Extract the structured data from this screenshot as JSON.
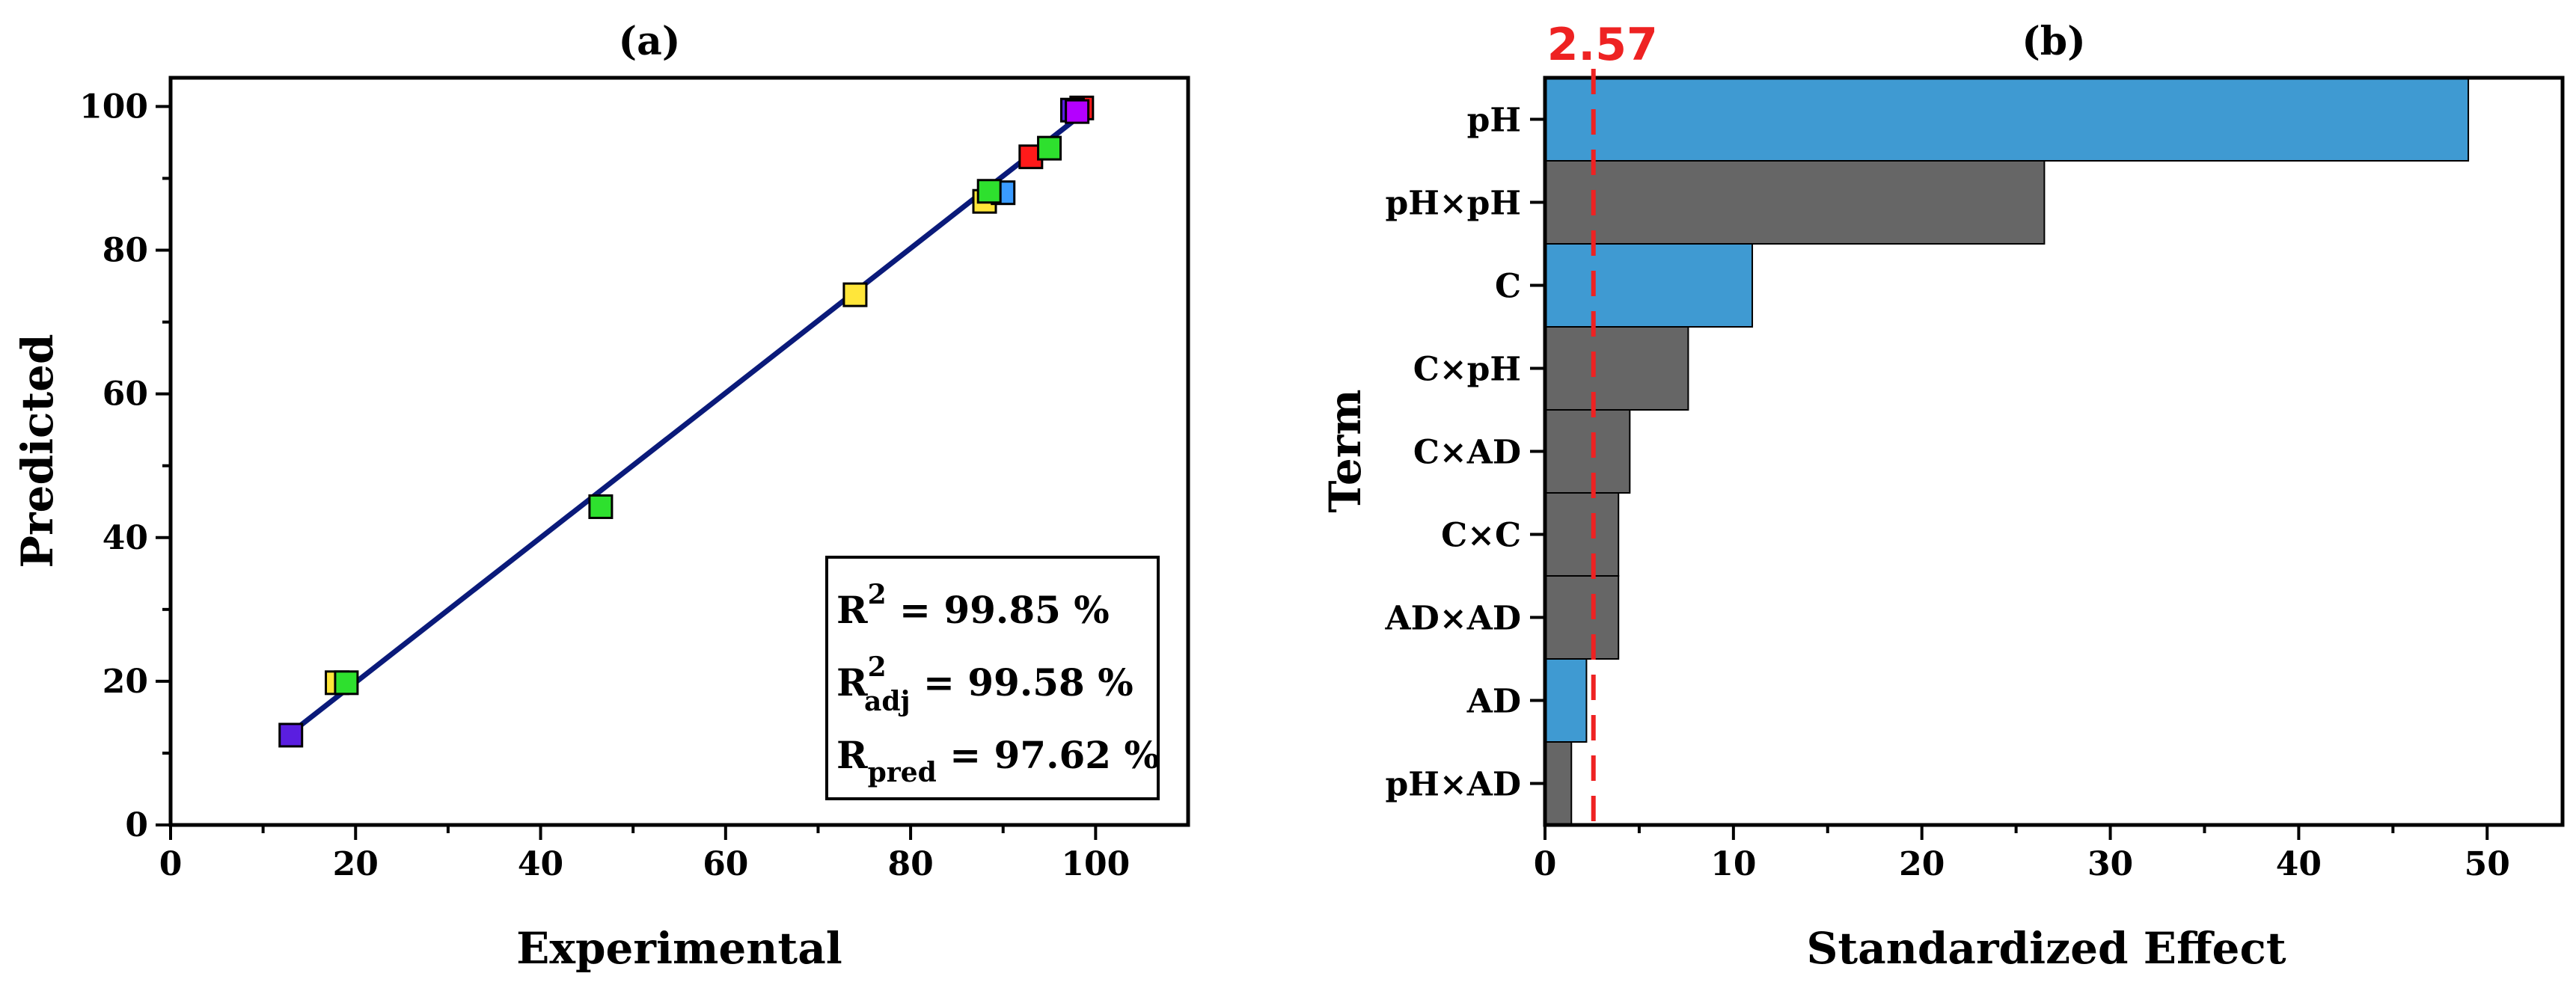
{
  "chart_data": [
    {
      "id": "a",
      "type": "scatter",
      "title": "(a)",
      "xlabel": "Experimental",
      "ylabel": "Predicted",
      "xlim": [
        0,
        110
      ],
      "ylim": [
        0,
        104
      ],
      "xticks": [
        0,
        20,
        40,
        60,
        80,
        100
      ],
      "yticks": [
        0,
        20,
        40,
        60,
        80,
        100
      ],
      "fit_line": {
        "x": [
          13,
          99
        ],
        "y": [
          12.8,
          99.4
        ],
        "color": "#0a1a7a"
      },
      "points": [
        {
          "x": 13.0,
          "y": 12.5,
          "color": "#5a1ee0"
        },
        {
          "x": 18.0,
          "y": 19.8,
          "color": "#ffe63a"
        },
        {
          "x": 19.0,
          "y": 19.8,
          "color": "#2ee02e"
        },
        {
          "x": 46.5,
          "y": 44.3,
          "color": "#2ee02e"
        },
        {
          "x": 74.0,
          "y": 73.8,
          "color": "#ffe63a"
        },
        {
          "x": 88.0,
          "y": 86.8,
          "color": "#ffe63a"
        },
        {
          "x": 90.0,
          "y": 88.0,
          "color": "#3a9bff"
        },
        {
          "x": 88.5,
          "y": 88.2,
          "color": "#2ee02e"
        },
        {
          "x": 93.0,
          "y": 93.0,
          "color": "#ff1a1a"
        },
        {
          "x": 95.0,
          "y": 94.2,
          "color": "#2ee02e"
        },
        {
          "x": 98.5,
          "y": 99.8,
          "color": "#ff1a1a"
        },
        {
          "x": 97.5,
          "y": 99.5,
          "color": "#5a1ee0"
        },
        {
          "x": 98.0,
          "y": 99.3,
          "color": "#b400ff"
        }
      ],
      "stats": {
        "r2_base": "R",
        "r2_sup": "2",
        "r2_text": " =  99.85 %",
        "radj_base": "R",
        "radj_sup": "2",
        "radj_sub": "adj",
        "radj_text": " = 99.58 %",
        "rpred_base": "R",
        "rpred_sub": "pred",
        "rpred_text": " = 97.62 %"
      }
    },
    {
      "id": "b",
      "type": "bar",
      "orientation": "horizontal",
      "title": "(b)",
      "xlabel": "Standardized Effect",
      "ylabel": "Term",
      "xlim": [
        0,
        54
      ],
      "xticks": [
        0,
        10,
        20,
        30,
        40,
        50
      ],
      "categories": [
        "pH",
        "pH×pH",
        "C",
        "C×pH",
        "C×AD",
        "C×C",
        "AD×AD",
        "AD",
        "pH×AD"
      ],
      "values": [
        49.0,
        26.5,
        11.0,
        7.6,
        4.5,
        3.9,
        3.9,
        2.2,
        1.4
      ],
      "bar_colors": [
        "#3f9ad2",
        "#666666",
        "#3f9ad2",
        "#666666",
        "#666666",
        "#666666",
        "#666666",
        "#3f9ad2",
        "#666666"
      ],
      "reference_line": {
        "value": 2.57,
        "label": "2.57",
        "color": "#ee2222"
      }
    }
  ]
}
